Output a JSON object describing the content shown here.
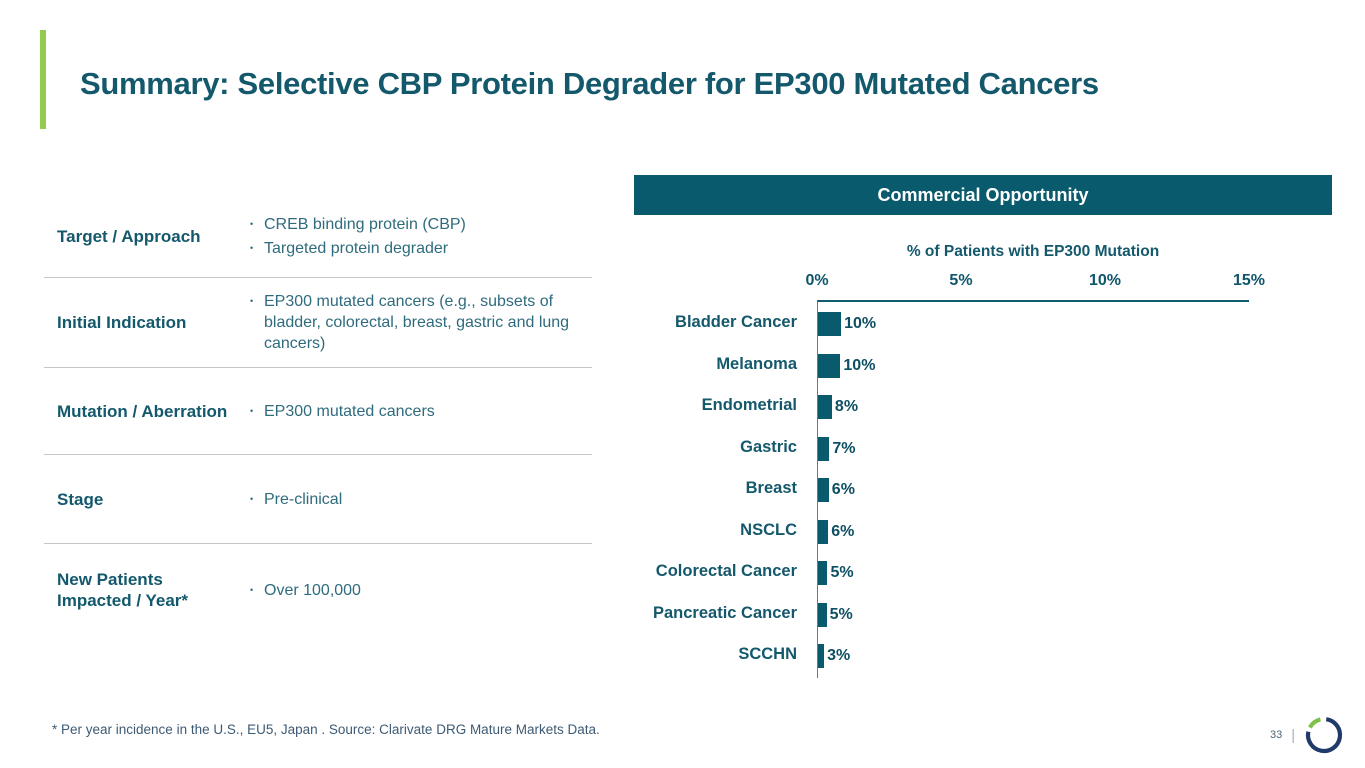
{
  "slide": {
    "title": "Summary: Selective CBP Protein Degrader for EP300 Mutated Cancers"
  },
  "info_table": {
    "rows": [
      {
        "label": "Target / Approach",
        "bullets": [
          "CREB binding protein (CBP)",
          "Targeted protein degrader"
        ]
      },
      {
        "label": "Initial Indication",
        "bullets": [
          "EP300 mutated cancers (e.g., subsets of bladder, colorectal, breast, gastric and lung cancers)"
        ]
      },
      {
        "label": "Mutation / Aberration",
        "bullets": [
          "EP300 mutated cancers"
        ]
      },
      {
        "label": "Stage",
        "bullets": [
          "Pre-clinical"
        ]
      },
      {
        "label": "New Patients Impacted / Year*",
        "bullets": [
          "Over 100,000"
        ]
      }
    ]
  },
  "commercial_panel": {
    "header": "Commercial Opportunity"
  },
  "chart_data": {
    "type": "bar",
    "orientation": "horizontal",
    "title": "% of Patients with EP300 Mutation",
    "categories": [
      "Bladder Cancer",
      "Melanoma",
      "Endometrial",
      "Gastric",
      "Breast",
      "NSCLC",
      "Colorectal Cancer",
      "Pancreatic Cancer",
      "SCCHN"
    ],
    "values": [
      10,
      10,
      8,
      7,
      6,
      6,
      5,
      5,
      3
    ],
    "data_labels": [
      "10%",
      "10%",
      "8%",
      "7%",
      "6%",
      "6%",
      "5%",
      "5%",
      "3%"
    ],
    "bar_lengths_visual_pct": [
      9.9,
      9.6,
      8.0,
      6.5,
      6.2,
      5.9,
      5.45,
      4.95,
      3.5
    ],
    "x_ticks": [
      "0%",
      "5%",
      "10%",
      "15%"
    ],
    "xlim": [
      0,
      15
    ],
    "axis_position": "top",
    "grid": false,
    "legend": false,
    "bar_color": "#085a6c"
  },
  "footer": {
    "footnote": "* Per year incidence in the U.S., EU5, Japan . Source: Clarivate DRG Mature Markets Data.",
    "page_number": "33",
    "separator": "|"
  },
  "icons": {
    "bullet": "•",
    "logo": "ring-logo"
  },
  "colors": {
    "teal_fill": "#085a6c",
    "teal_text": "#14586c",
    "bullet_text": "#2e6b7d",
    "accent_green": "#93cb4f",
    "logo_navy": "#203a69",
    "logo_green": "#7fc249",
    "footnote_text": "#3d5a74",
    "divider_gray": "#c6c6c6"
  }
}
